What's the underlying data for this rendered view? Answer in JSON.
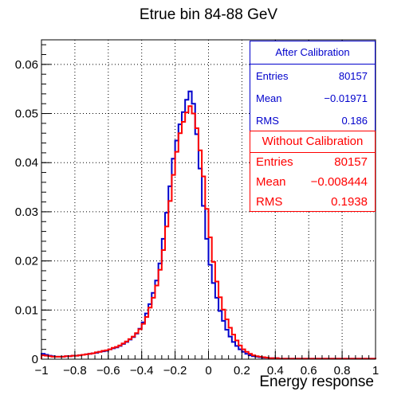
{
  "title": "Etrue bin 84-88 GeV",
  "stats": {
    "after": {
      "header": "After Calibration",
      "color": "#0000cc",
      "rows": [
        {
          "label": "Entries",
          "value": "80157"
        },
        {
          "label": "Mean",
          "value": "−0.01971"
        },
        {
          "label": "RMS",
          "value": "0.186"
        }
      ]
    },
    "without": {
      "header": "Without Calibration",
      "color": "#ff0000",
      "rows": [
        {
          "label": "Entries",
          "value": "80157"
        },
        {
          "label": "Mean",
          "value": "−0.008444"
        },
        {
          "label": "RMS",
          "value": "0.1938"
        }
      ]
    }
  },
  "chart_data": {
    "type": "line",
    "title": "Etrue bin 84-88 GeV",
    "xlabel": "Energy response",
    "ylabel": "",
    "xlim": [
      -1,
      1
    ],
    "ylim": [
      0,
      0.065
    ],
    "x_ticks": [
      "−1",
      "−0.8",
      "−0.6",
      "−0.4",
      "−0.2",
      "0",
      "0.2",
      "0.4",
      "0.6",
      "0.8",
      "1"
    ],
    "y_ticks": [
      "0",
      "0.01",
      "0.02",
      "0.03",
      "0.04",
      "0.05",
      "0.06"
    ],
    "grid": true,
    "bin_edges": [
      -1,
      -0.98,
      -0.96,
      -0.94,
      -0.92,
      -0.9,
      -0.88,
      -0.86,
      -0.84,
      -0.82,
      -0.8,
      -0.78,
      -0.76,
      -0.74,
      -0.72,
      -0.7,
      -0.68,
      -0.66,
      -0.64,
      -0.62,
      -0.6,
      -0.58,
      -0.56,
      -0.54,
      -0.52,
      -0.5,
      -0.48,
      -0.46,
      -0.44,
      -0.42,
      -0.4,
      -0.38,
      -0.36,
      -0.34,
      -0.32,
      -0.3,
      -0.28,
      -0.26,
      -0.24,
      -0.22,
      -0.2,
      -0.18,
      -0.16,
      -0.14,
      -0.12,
      -0.1,
      -0.08,
      -0.06,
      -0.04,
      -0.02,
      0,
      0.02,
      0.04,
      0.06,
      0.08,
      0.1,
      0.12,
      0.14,
      0.16,
      0.18,
      0.2,
      0.22,
      0.24,
      0.26,
      0.28,
      0.3,
      0.32,
      0.34,
      0.36,
      0.38,
      0.4,
      0.42,
      0.44,
      0.46,
      0.48,
      0.5,
      0.52,
      0.54,
      0.56,
      0.58,
      0.6,
      0.62,
      0.64,
      0.66,
      0.68,
      0.7,
      0.72,
      0.74,
      0.76,
      0.78,
      0.8,
      0.82,
      0.84,
      0.86,
      0.88,
      0.9,
      0.92,
      0.94,
      0.96,
      0.98,
      1
    ],
    "series": [
      {
        "name": "After Calibration",
        "color": "#0000cc",
        "values": [
          0.0011,
          0.0009,
          0.0007,
          0.0006,
          0.0005,
          0.0005,
          0.0005,
          0.0006,
          0.0006,
          0.0007,
          0.0007,
          0.0008,
          0.0009,
          0.001,
          0.0011,
          0.0012,
          0.0013,
          0.0015,
          0.0016,
          0.0017,
          0.002,
          0.0022,
          0.0024,
          0.0027,
          0.0031,
          0.0035,
          0.004,
          0.0045,
          0.0052,
          0.0062,
          0.0075,
          0.0093,
          0.0112,
          0.0135,
          0.016,
          0.0195,
          0.0245,
          0.0298,
          0.0352,
          0.0408,
          0.0445,
          0.0478,
          0.0503,
          0.0528,
          0.0545,
          0.052,
          0.0458,
          0.0388,
          0.0312,
          0.0245,
          0.0192,
          0.0155,
          0.0125,
          0.0098,
          0.0078,
          0.006,
          0.0046,
          0.0035,
          0.0027,
          0.002,
          0.0015,
          0.0011,
          0.0008,
          0.0006,
          0.0005,
          0.0004,
          0.0003,
          0.0003,
          0.0002,
          0.0002,
          0.0002,
          0.0001,
          0.0001,
          0.0001,
          0.0001,
          0.0001,
          0.0001,
          0.0001,
          0.0001,
          0.0001,
          0.0001,
          0.0001,
          0.0001,
          0.0001,
          0.0001,
          0.0001,
          0.0001,
          0.0001,
          0.0001,
          0.0001,
          0.0001,
          0.0001,
          0.0001,
          0.0001,
          0.0001,
          0.0001,
          0.0001,
          0.0001,
          0.0001,
          0.0001
        ]
      },
      {
        "name": "Without Calibration",
        "color": "#ff0000",
        "values": [
          0.0008,
          0.0007,
          0.0006,
          0.0005,
          0.0005,
          0.0005,
          0.0005,
          0.0006,
          0.0006,
          0.0007,
          0.0007,
          0.0008,
          0.0009,
          0.001,
          0.0011,
          0.0012,
          0.0014,
          0.0015,
          0.0017,
          0.0018,
          0.002,
          0.0023,
          0.0025,
          0.0028,
          0.0032,
          0.0036,
          0.0041,
          0.0046,
          0.0053,
          0.0061,
          0.0072,
          0.0086,
          0.0105,
          0.0125,
          0.015,
          0.0182,
          0.0222,
          0.027,
          0.0322,
          0.0375,
          0.0422,
          0.046,
          0.0483,
          0.0502,
          0.0515,
          0.05,
          0.047,
          0.0425,
          0.0372,
          0.0306,
          0.0248,
          0.0198,
          0.0158,
          0.0126,
          0.0101,
          0.0081,
          0.0064,
          0.005,
          0.0038,
          0.0028,
          0.002,
          0.0015,
          0.0011,
          0.0008,
          0.0006,
          0.0005,
          0.0004,
          0.0003,
          0.0002,
          0.0002,
          0.0002,
          0.0001,
          0.0001,
          0.0001,
          0.0001,
          0.0001,
          0.0001,
          0.0001,
          0.0001,
          0.0001,
          0.0001,
          0.0001,
          0.0001,
          0.0001,
          0.0001,
          0.0001,
          0.0001,
          0.0001,
          0.0001,
          0.0001,
          0.0001,
          0.0001,
          0.0001,
          0.0001,
          0.0001,
          0.0001,
          0.0001,
          0.0001,
          0.0001,
          0.0001
        ]
      }
    ]
  }
}
